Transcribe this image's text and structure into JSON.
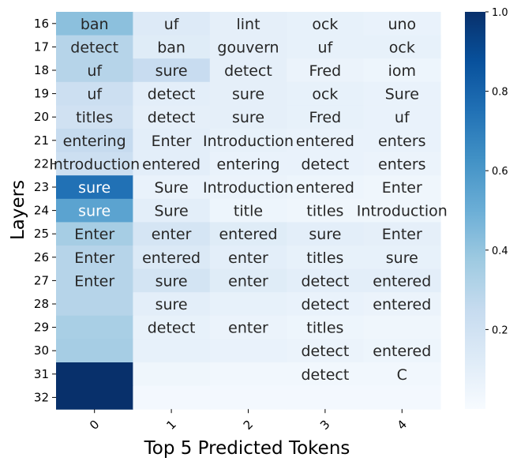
{
  "chart_data": {
    "type": "heatmap",
    "xlabel": "Top 5 Predicted Tokens",
    "ylabel": "Layers",
    "x_categories": [
      "0",
      "1",
      "2",
      "3",
      "4"
    ],
    "y_categories": [
      "16",
      "17",
      "18",
      "19",
      "20",
      "21",
      "22",
      "23",
      "24",
      "25",
      "26",
      "27",
      "28",
      "29",
      "30",
      "31",
      "32"
    ],
    "tokens": [
      [
        "ban",
        "uf",
        "lint",
        "ock",
        "uno"
      ],
      [
        "detect",
        "ban",
        "gouvern",
        "uf",
        "ock"
      ],
      [
        "uf",
        "sure",
        "detect",
        "Fred",
        "iom"
      ],
      [
        "uf",
        "detect",
        "sure",
        "ock",
        "Sure"
      ],
      [
        "titles",
        "detect",
        "sure",
        "Fred",
        "uf"
      ],
      [
        "entering",
        "Enter",
        "Introduction",
        "entered",
        "enters"
      ],
      [
        "Introduction",
        "entered",
        "entering",
        "detect",
        "enters"
      ],
      [
        "sure",
        "Sure",
        "Introduction",
        "entered",
        "Enter"
      ],
      [
        "sure",
        "Sure",
        "title",
        "titles",
        "Introduction"
      ],
      [
        "Enter",
        "enter",
        "entered",
        "sure",
        "Enter"
      ],
      [
        "Enter",
        "entered",
        "enter",
        "titles",
        "sure"
      ],
      [
        "Enter",
        "sure",
        "enter",
        "detect",
        "entered"
      ],
      [
        "",
        "sure",
        "",
        "detect",
        "entered"
      ],
      [
        "",
        "detect",
        "enter",
        "titles",
        ""
      ],
      [
        "",
        "",
        "",
        "detect",
        "entered"
      ],
      [
        "",
        "",
        "",
        "detect",
        "C"
      ],
      [
        "",
        "",
        "",
        "",
        ""
      ]
    ],
    "values": [
      [
        0.42,
        0.13,
        0.09,
        0.08,
        0.07
      ],
      [
        0.3,
        0.12,
        0.09,
        0.08,
        0.08
      ],
      [
        0.3,
        0.24,
        0.09,
        0.06,
        0.05
      ],
      [
        0.22,
        0.1,
        0.09,
        0.08,
        0.07
      ],
      [
        0.2,
        0.09,
        0.09,
        0.08,
        0.07
      ],
      [
        0.25,
        0.1,
        0.08,
        0.07,
        0.07
      ],
      [
        0.22,
        0.1,
        0.07,
        0.07,
        0.06
      ],
      [
        0.75,
        0.07,
        0.06,
        0.05,
        0.04
      ],
      [
        0.55,
        0.1,
        0.05,
        0.04,
        0.04
      ],
      [
        0.35,
        0.17,
        0.12,
        0.1,
        0.09
      ],
      [
        0.3,
        0.14,
        0.1,
        0.08,
        0.08
      ],
      [
        0.3,
        0.18,
        0.12,
        0.1,
        0.1
      ],
      [
        0.3,
        0.1,
        0.08,
        0.07,
        0.06
      ],
      [
        0.34,
        0.08,
        0.06,
        0.05,
        0.04
      ],
      [
        0.35,
        0.08,
        0.07,
        0.06,
        0.05
      ],
      [
        1.0,
        0.04,
        0.03,
        0.03,
        0.03
      ],
      [
        1.0,
        0.02,
        0.02,
        0.02,
        0.02
      ]
    ],
    "colormap": "Blues",
    "vmin": 0,
    "vmax": 1,
    "colorbar_ticks": [
      "0.2",
      "0.4",
      "0.6",
      "0.8",
      "1.0"
    ],
    "colorbar_tick_values": [
      0.2,
      0.4,
      0.6,
      0.8,
      1.0
    ]
  }
}
